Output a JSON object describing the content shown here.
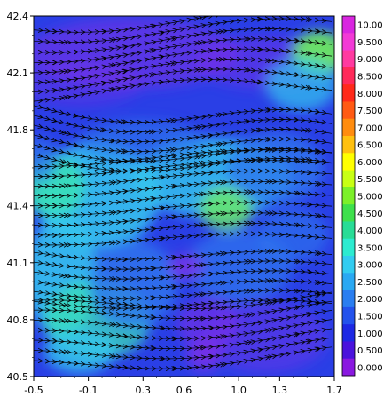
{
  "chart_data": {
    "type": "heatmap",
    "x_ticks": [
      "-0.5",
      "-0.1",
      "0.3",
      "0.6",
      "1.0",
      "1.3",
      "1.7"
    ],
    "x_tick_values": [
      -0.5,
      -0.1,
      0.3,
      0.6,
      1.0,
      1.3,
      1.7
    ],
    "y_ticks": [
      "42.4",
      "42.1",
      "41.8",
      "41.4",
      "41.1",
      "40.8",
      "40.5"
    ],
    "y_tick_values": [
      42.4,
      42.1,
      41.8,
      41.4,
      41.1,
      40.8,
      40.5
    ],
    "xlim": [
      -0.5,
      1.7
    ],
    "ylim": [
      40.5,
      42.4
    ],
    "overlay": "streamlines",
    "colorbar": {
      "placement": "right",
      "levels": [
        "10.00",
        "9.500",
        "9.000",
        "8.500",
        "8.000",
        "7.500",
        "7.000",
        "6.500",
        "6.000",
        "5.500",
        "5.000",
        "4.500",
        "4.000",
        "3.500",
        "3.000",
        "2.500",
        "2.000",
        "1.500",
        "1.000",
        "0.500",
        "0.000"
      ],
      "colors": [
        "#d926e0",
        "#f23ad6",
        "#ff3aa0",
        "#ff2a5a",
        "#ff2a1a",
        "#ff5a14",
        "#ff8c0f",
        "#ffc010",
        "#ffff00",
        "#c8ff14",
        "#7cf02a",
        "#3ee04c",
        "#28dc96",
        "#2cebd0",
        "#32ccf0",
        "#2aa8f2",
        "#2a7ef0",
        "#2352ec",
        "#1d28e4",
        "#4a12dc",
        "#8a18e0"
      ]
    },
    "field_colors": {
      "calm": "#7d2fe8",
      "low": "#2a3fe6",
      "medium": "#2e78ee",
      "high": "#35c8ee",
      "peak": "#3be6b2",
      "max": "#6ff05a"
    }
  }
}
